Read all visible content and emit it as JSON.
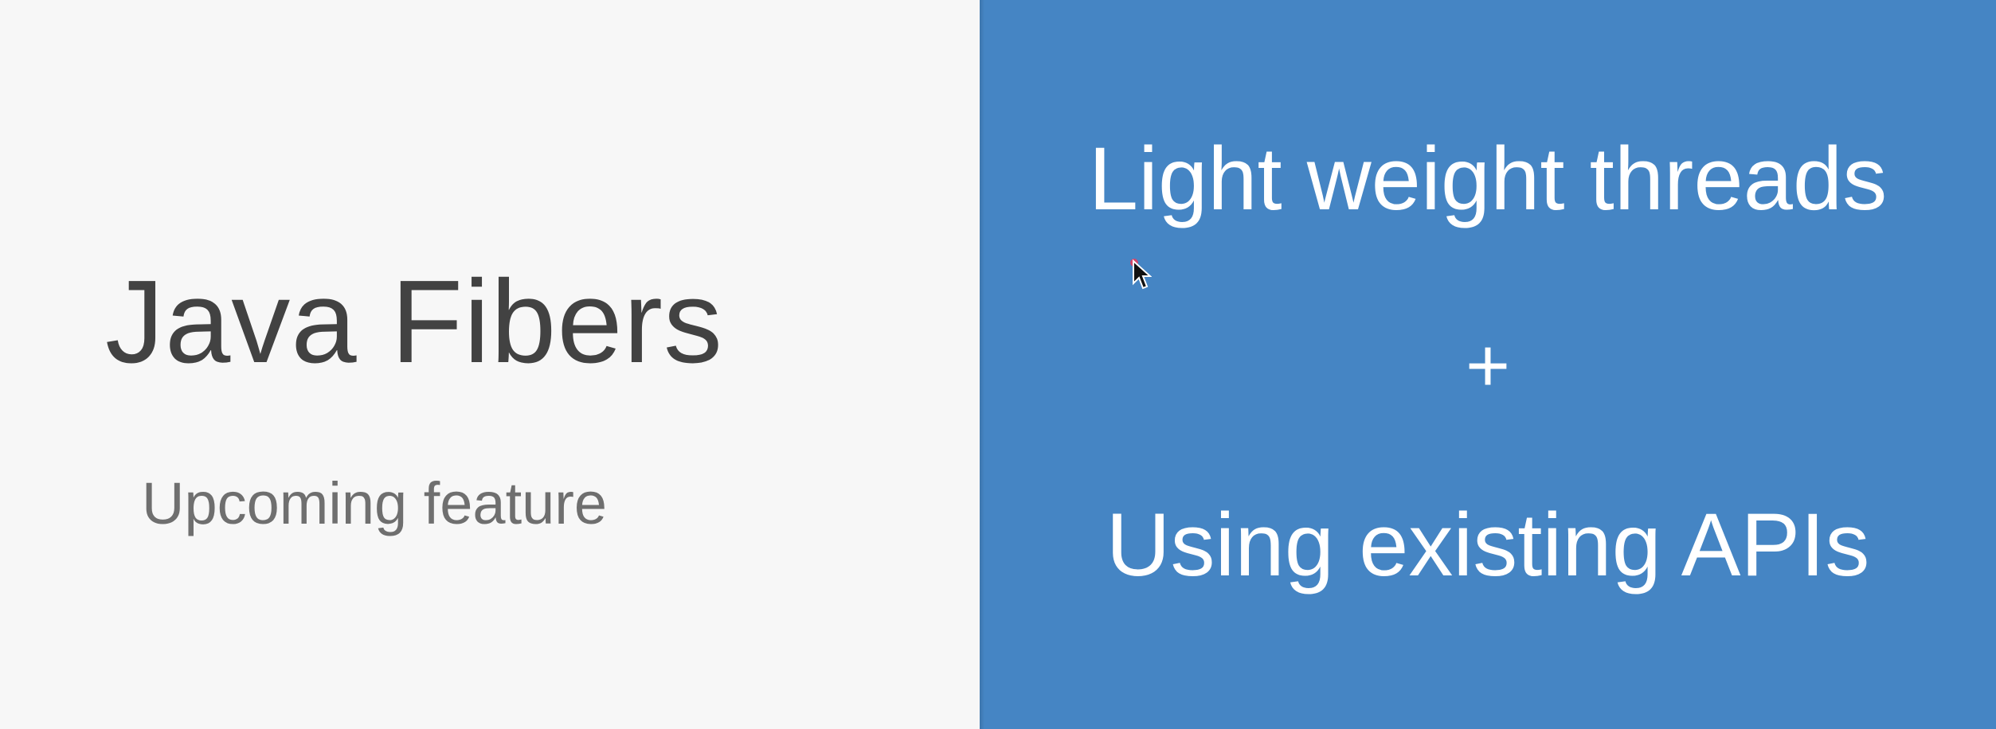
{
  "slide": {
    "title": "Java Fibers",
    "subtitle": "Upcoming feature",
    "features": {
      "top": "Light weight threads",
      "operator": "+",
      "bottom": "Using existing APIs"
    }
  },
  "icons": {
    "cursor": "mouse-pointer-icon"
  },
  "colors": {
    "left_background": "#f7f7f7",
    "right_background": "#4585c4",
    "title_text": "#424242",
    "subtitle_text": "#6f6f6f",
    "feature_text": "#ffffff"
  }
}
